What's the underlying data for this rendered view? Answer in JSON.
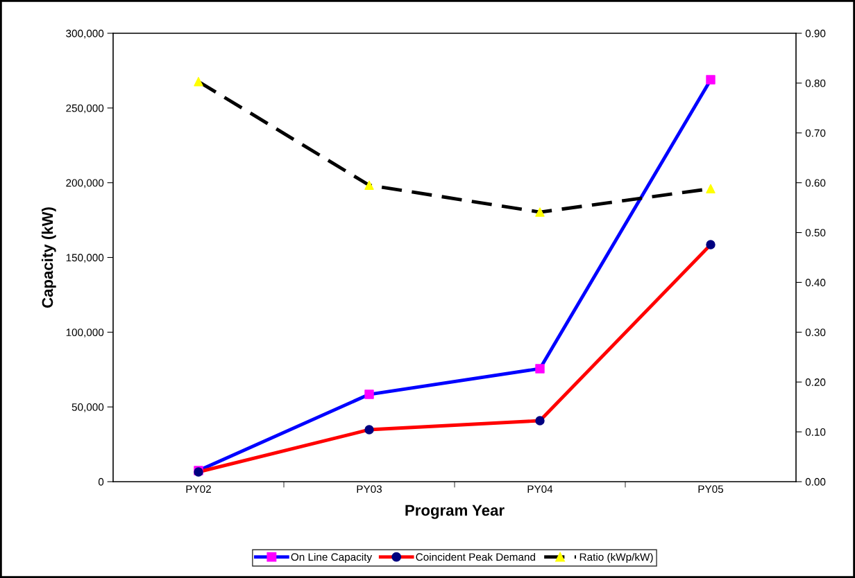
{
  "chart_data": {
    "type": "line",
    "xlabel": "Program Year",
    "ylabel": "Capacity (kW)",
    "categories": [
      "PY02",
      "PY03",
      "PY04",
      "PY05"
    ],
    "series": [
      {
        "name": "On Line Capacity",
        "color": "#0000ff",
        "marker": "square",
        "colors": [
          "#ff00ff",
          "#ff00ff",
          "#ff00ff",
          "#ff00ff"
        ],
        "line_style": "solid",
        "values": [
          7400,
          58400,
          75600,
          268900
        ]
      },
      {
        "name": "Coincident Peak Demand",
        "color": "#ff0000",
        "marker": "circle",
        "colors": [
          "#000080",
          "#000080",
          "#000080",
          "#000080"
        ],
        "line_style": "solid",
        "values": [
          6500,
          34800,
          40800,
          158600
        ]
      },
      {
        "name": "Ratio (kWp/kW)",
        "color": "#000000",
        "marker": "triangle",
        "colors": [
          "#ffff00",
          "#ffff00",
          "#ffff00",
          "#ffff00"
        ],
        "line_style": "dashed",
        "axis": "y2",
        "values": [
          0.803,
          0.595,
          0.541,
          0.588
        ]
      }
    ],
    "ylim": [
      0,
      300000
    ],
    "yticks": [
      {
        "value": 0,
        "label": "0"
      },
      {
        "value": 50000,
        "label": "50,000"
      },
      {
        "value": 100000,
        "label": "100,000"
      },
      {
        "value": 150000,
        "label": "150,000"
      },
      {
        "value": 200000,
        "label": "200,000"
      },
      {
        "value": 250000,
        "label": "250,000"
      },
      {
        "value": 300000,
        "label": "300,000"
      }
    ],
    "y2lim": [
      0,
      0.9
    ],
    "y2ticks": [
      {
        "value": 0,
        "label": "0.00"
      },
      {
        "value": 0.1,
        "label": "0.10"
      },
      {
        "value": 0.2,
        "label": "0.20"
      },
      {
        "value": 0.3,
        "label": "0.30"
      },
      {
        "value": 0.4,
        "label": "0.40"
      },
      {
        "value": 0.5,
        "label": "0.50"
      },
      {
        "value": 0.6,
        "label": "0.60"
      },
      {
        "value": 0.7,
        "label": "0.70"
      },
      {
        "value": 0.8,
        "label": "0.80"
      },
      {
        "value": 0.9,
        "label": "0.90"
      }
    ],
    "grid": false,
    "legend": "bottom"
  }
}
